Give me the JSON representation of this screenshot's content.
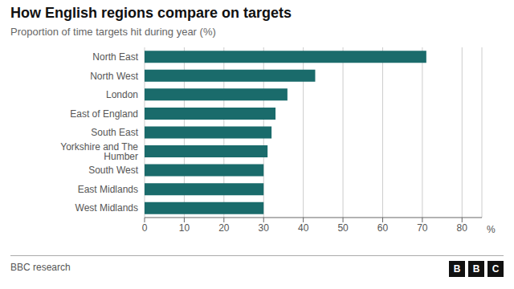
{
  "chart_data": {
    "type": "bar",
    "orientation": "horizontal",
    "title": "How English regions compare on targets",
    "subtitle": "Proportion of time targets hit during year (%)",
    "categories": [
      "West Midlands",
      "East Midlands",
      "South West",
      "Yorkshire and The Humber",
      "South East",
      "East of England",
      "London",
      "North West",
      "North East"
    ],
    "values": [
      30,
      30,
      30,
      31,
      32,
      33,
      36,
      43,
      71
    ],
    "color": "#1a6b6b",
    "xlim": [
      0,
      85
    ],
    "xticks": [
      0,
      10,
      20,
      30,
      40,
      50,
      60,
      70,
      80
    ],
    "xlabel": "%",
    "grid": true,
    "annotations": [
      "BBC research",
      "BBC"
    ]
  }
}
